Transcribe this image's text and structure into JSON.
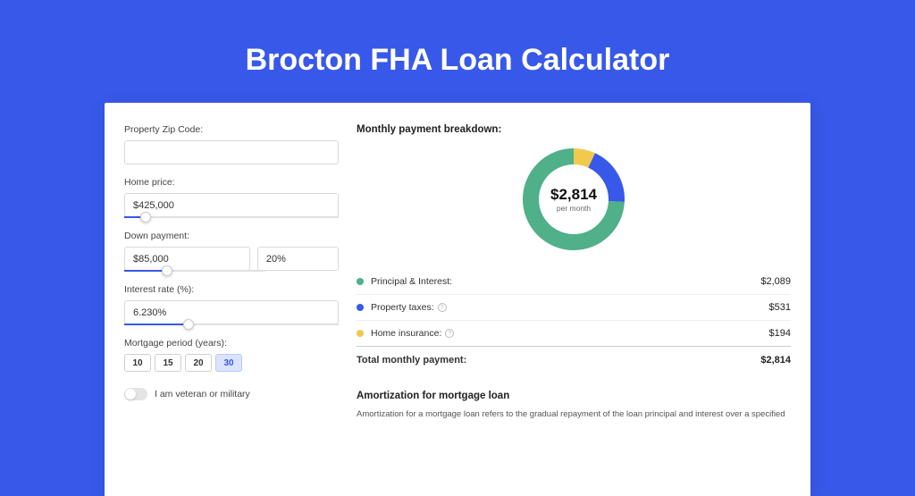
{
  "page": {
    "title": "Brocton FHA Loan Calculator",
    "background_color": "#3858e9",
    "card_background": "#ffffff"
  },
  "form": {
    "zip": {
      "label": "Property Zip Code:",
      "value": ""
    },
    "home_price": {
      "label": "Home price:",
      "value": "$425,000",
      "slider_pct": 10
    },
    "down_payment": {
      "label": "Down payment:",
      "amount": "$85,000",
      "percent": "20%",
      "slider_pct": 20
    },
    "interest_rate": {
      "label": "Interest rate (%):",
      "value": "6.230%",
      "slider_pct": 30
    },
    "mortgage_period": {
      "label": "Mortgage period (years):",
      "options": [
        "10",
        "15",
        "20",
        "30"
      ],
      "selected": "30"
    },
    "veteran": {
      "label": "I am veteran or military",
      "checked": false
    }
  },
  "breakdown": {
    "title": "Monthly payment breakdown:",
    "total_value": "$2,814",
    "total_sublabel": "per month",
    "items": [
      {
        "label": "Principal & Interest:",
        "value": "$2,089",
        "color": "#4fb08a",
        "info": false,
        "fraction": 0.742
      },
      {
        "label": "Property taxes:",
        "value": "$531",
        "color": "#3858e9",
        "info": true,
        "fraction": 0.189
      },
      {
        "label": "Home insurance:",
        "value": "$194",
        "color": "#f2c94c",
        "info": true,
        "fraction": 0.069
      }
    ],
    "total_row": {
      "label": "Total monthly payment:",
      "value": "$2,814"
    }
  },
  "amortization": {
    "title": "Amortization for mortgage loan",
    "text": "Amortization for a mortgage loan refers to the gradual repayment of the loan principal and interest over a specified"
  },
  "donut": {
    "radius": 48,
    "stroke_width": 18,
    "background": "#ffffff"
  }
}
